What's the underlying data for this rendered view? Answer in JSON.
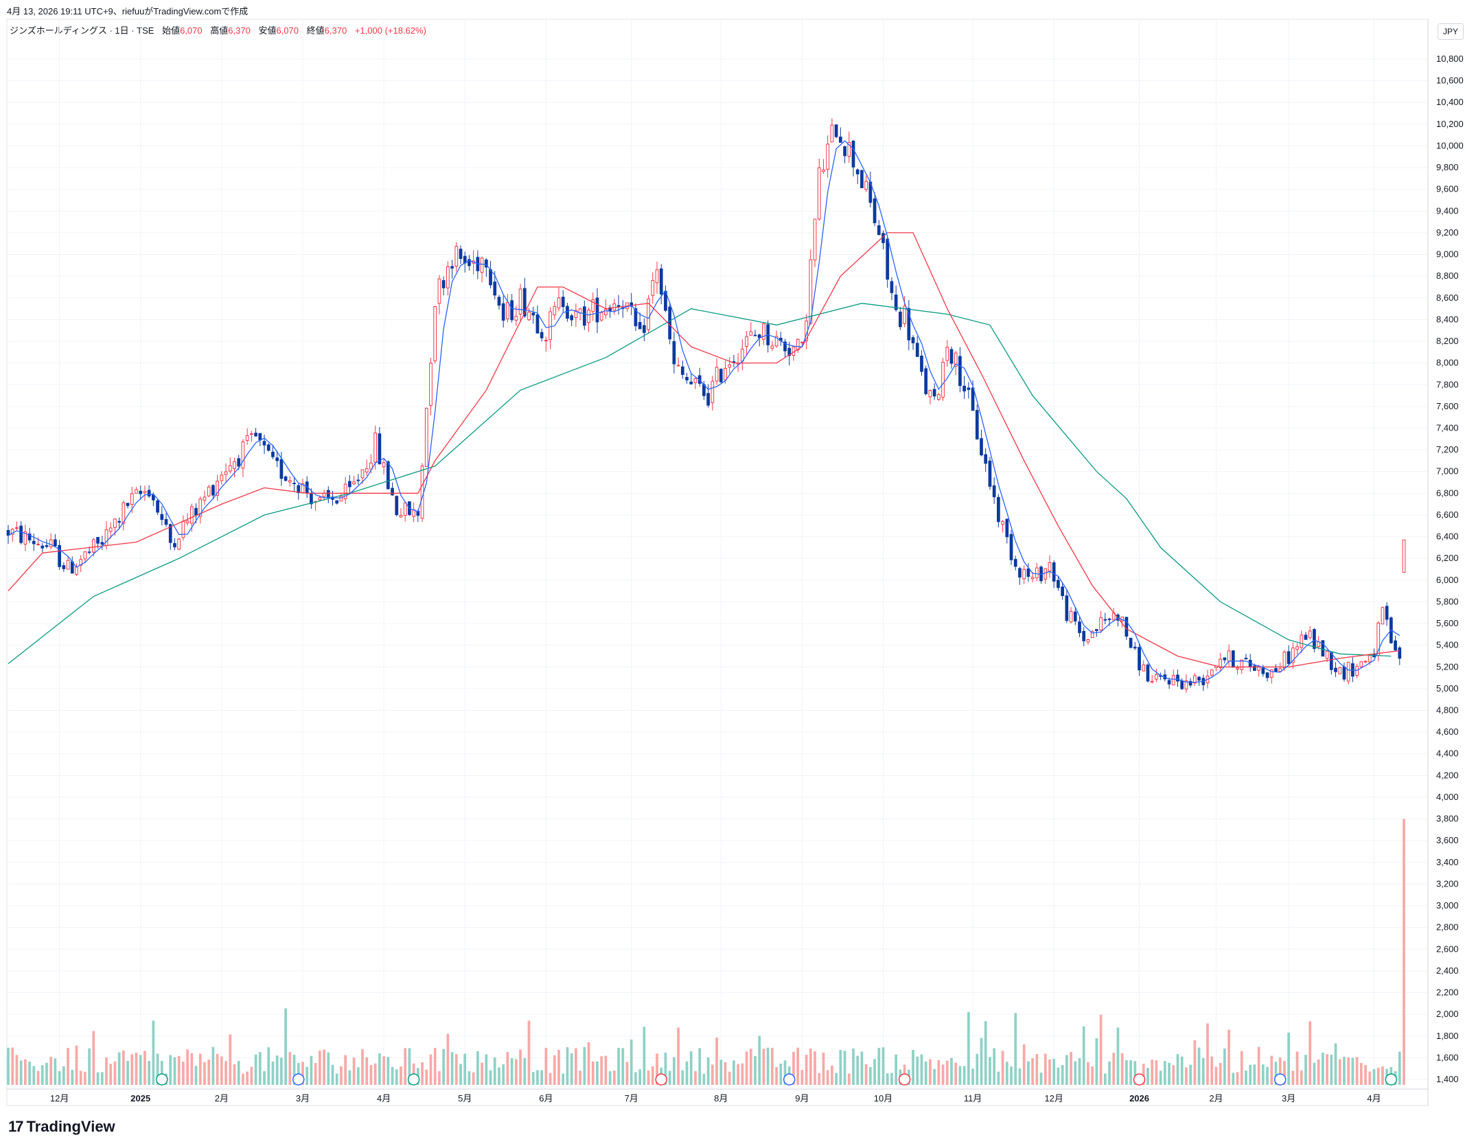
{
  "header": {
    "created_line": "4月 13, 2026 19:11 UTC+9、riefuuがTradingView.comで作成",
    "symbol": "ジンズホールディングス · 1日 · TSE",
    "open_label": "始値",
    "open": "6,070",
    "high_label": "高値",
    "high": "6,370",
    "low_label": "安値",
    "low": "6,070",
    "close_label": "終値",
    "close": "6,370",
    "change": "+1,000 (+18.62%)"
  },
  "currency": "JPY",
  "brand": {
    "logo": "17",
    "name": "TradingView"
  },
  "colors": {
    "up": "#f23645",
    "down": "#0b3a9e",
    "ma_short": "#2962ff",
    "ma_mid": "#f23645",
    "ma_long": "#089981",
    "vol_up": "#f7a9a7",
    "vol_down": "#8fd1c5"
  },
  "chart_data": {
    "type": "candlestick",
    "price_axis": {
      "min": 1400,
      "max": 10800,
      "ticks": [
        1400,
        1600,
        1800,
        2000,
        2200,
        2400,
        2600,
        2800,
        3000,
        3200,
        3400,
        3600,
        3800,
        4000,
        4200,
        4400,
        4600,
        4800,
        5000,
        5200,
        5400,
        5600,
        5800,
        6000,
        6200,
        6400,
        6600,
        6800,
        7000,
        7200,
        7400,
        7600,
        7800,
        8000,
        8200,
        8400,
        8600,
        8800,
        9000,
        9200,
        9400,
        9600,
        9800,
        10000,
        10200,
        10400,
        10600,
        10800
      ]
    },
    "price_tick_labels": [
      "1,400",
      "1,600",
      "1,800",
      "2,000",
      "2,200",
      "2,400",
      "2,600",
      "2,800",
      "3,000",
      "3,200",
      "3,400",
      "3,600",
      "3,800",
      "4,000",
      "4,200",
      "4,400",
      "4,600",
      "4,800",
      "5,000",
      "5,200",
      "5,400",
      "5,600",
      "5,800",
      "6,000",
      "6,200",
      "6,400",
      "6,600",
      "6,800",
      "7,000",
      "7,200",
      "7,400",
      "7,600",
      "7,800",
      "8,000",
      "8,200",
      "8,400",
      "8,600",
      "8,800",
      "9,000",
      "9,200",
      "9,400",
      "9,600",
      "9,800",
      "10,000",
      "10,200",
      "10,400",
      "10,600",
      "10,800"
    ],
    "time_labels": [
      {
        "label": "12月",
        "i": 12,
        "bold": false
      },
      {
        "label": "2025",
        "i": 31,
        "bold": true
      },
      {
        "label": "2月",
        "i": 50,
        "bold": false
      },
      {
        "label": "3月",
        "i": 69,
        "bold": false
      },
      {
        "label": "4月",
        "i": 88,
        "bold": false
      },
      {
        "label": "5月",
        "i": 107,
        "bold": false
      },
      {
        "label": "6月",
        "i": 126,
        "bold": false
      },
      {
        "label": "7月",
        "i": 146,
        "bold": false
      },
      {
        "label": "8月",
        "i": 167,
        "bold": false
      },
      {
        "label": "9月",
        "i": 186,
        "bold": false
      },
      {
        "label": "10月",
        "i": 205,
        "bold": false
      },
      {
        "label": "11月",
        "i": 226,
        "bold": false
      },
      {
        "label": "12月",
        "i": 245,
        "bold": false
      },
      {
        "label": "2026",
        "i": 265,
        "bold": true
      },
      {
        "label": "2月",
        "i": 283,
        "bold": false
      },
      {
        "label": "3月",
        "i": 300,
        "bold": false
      },
      {
        "label": "4月",
        "i": 320,
        "bold": false
      }
    ],
    "bar_count": 328,
    "last_bar": {
      "open": 6070,
      "high": 6370,
      "low": 6070,
      "close": 6370
    },
    "anchors": [
      [
        0,
        6450
      ],
      [
        10,
        6300
      ],
      [
        14,
        6100
      ],
      [
        22,
        6350
      ],
      [
        28,
        6700
      ],
      [
        33,
        6850
      ],
      [
        38,
        6350
      ],
      [
        45,
        6700
      ],
      [
        50,
        7000
      ],
      [
        58,
        7300
      ],
      [
        62,
        7050
      ],
      [
        68,
        6900
      ],
      [
        73,
        6700
      ],
      [
        80,
        6800
      ],
      [
        86,
        7250
      ],
      [
        91,
        6650
      ],
      [
        96,
        6600
      ],
      [
        100,
        8600
      ],
      [
        104,
        9000
      ],
      [
        108,
        8900
      ],
      [
        112,
        9000
      ],
      [
        116,
        8400
      ],
      [
        120,
        8600
      ],
      [
        126,
        8300
      ],
      [
        130,
        8600
      ],
      [
        133,
        8400
      ],
      [
        138,
        8500
      ],
      [
        144,
        8600
      ],
      [
        148,
        8200
      ],
      [
        152,
        8900
      ],
      [
        156,
        7950
      ],
      [
        160,
        7800
      ],
      [
        164,
        7700
      ],
      [
        168,
        8000
      ],
      [
        172,
        8150
      ],
      [
        176,
        8300
      ],
      [
        180,
        8200
      ],
      [
        186,
        8100
      ],
      [
        190,
        9700
      ],
      [
        194,
        10200
      ],
      [
        199,
        9800
      ],
      [
        204,
        9200
      ],
      [
        206,
        8800
      ],
      [
        208,
        8450
      ],
      [
        210,
        8450
      ],
      [
        214,
        7850
      ],
      [
        217,
        7600
      ],
      [
        220,
        8200
      ],
      [
        224,
        7800
      ],
      [
        228,
        7200
      ],
      [
        232,
        6600
      ],
      [
        236,
        6150
      ],
      [
        240,
        6000
      ],
      [
        244,
        6150
      ],
      [
        248,
        5700
      ],
      [
        252,
        5450
      ],
      [
        256,
        5600
      ],
      [
        260,
        5700
      ],
      [
        264,
        5300
      ],
      [
        268,
        5050
      ],
      [
        272,
        5100
      ],
      [
        276,
        5050
      ],
      [
        280,
        5100
      ],
      [
        284,
        5300
      ],
      [
        288,
        5250
      ],
      [
        292,
        5200
      ],
      [
        296,
        5150
      ],
      [
        300,
        5300
      ],
      [
        304,
        5500
      ],
      [
        308,
        5350
      ],
      [
        312,
        5150
      ],
      [
        316,
        5200
      ],
      [
        320,
        5350
      ],
      [
        322,
        5700
      ],
      [
        325,
        5300
      ]
    ],
    "ma_long_pts": [
      [
        0,
        5230
      ],
      [
        20,
        5850
      ],
      [
        40,
        6200
      ],
      [
        60,
        6600
      ],
      [
        80,
        6800
      ],
      [
        100,
        7050
      ],
      [
        120,
        7750
      ],
      [
        140,
        8050
      ],
      [
        160,
        8500
      ],
      [
        180,
        8350
      ],
      [
        200,
        8550
      ],
      [
        220,
        8450
      ],
      [
        230,
        8350
      ],
      [
        240,
        7700
      ],
      [
        255,
        7000
      ],
      [
        262,
        6750
      ],
      [
        270,
        6300
      ],
      [
        284,
        5800
      ],
      [
        300,
        5450
      ],
      [
        312,
        5320
      ],
      [
        324,
        5300
      ]
    ],
    "ma_mid_pts": [
      [
        0,
        5900
      ],
      [
        8,
        6250
      ],
      [
        30,
        6350
      ],
      [
        50,
        6700
      ],
      [
        60,
        6850
      ],
      [
        70,
        6800
      ],
      [
        85,
        6800
      ],
      [
        96,
        6800
      ],
      [
        100,
        7100
      ],
      [
        112,
        7750
      ],
      [
        124,
        8700
      ],
      [
        130,
        8700
      ],
      [
        140,
        8500
      ],
      [
        150,
        8550
      ],
      [
        160,
        8150
      ],
      [
        170,
        8000
      ],
      [
        180,
        8000
      ],
      [
        186,
        8150
      ],
      [
        195,
        8800
      ],
      [
        206,
        9200
      ],
      [
        212,
        9200
      ],
      [
        220,
        8500
      ],
      [
        228,
        7900
      ],
      [
        238,
        7100
      ],
      [
        246,
        6500
      ],
      [
        254,
        5950
      ],
      [
        262,
        5550
      ],
      [
        274,
        5300
      ],
      [
        284,
        5200
      ],
      [
        300,
        5200
      ],
      [
        312,
        5280
      ],
      [
        326,
        5350
      ]
    ]
  }
}
